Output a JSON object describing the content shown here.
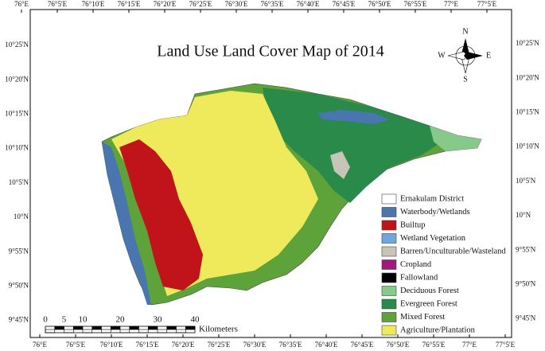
{
  "title": "Land Use Land Cover Map of 2014",
  "compass": {
    "north": "N",
    "south": "S",
    "east": "E",
    "west": "W"
  },
  "graticule": {
    "longitudes": [
      "76°E",
      "76°5'E",
      "76°10'E",
      "76°15'E",
      "76°20'E",
      "76°25'E",
      "76°30'E",
      "76°35'E",
      "76°40'E",
      "76°45'E",
      "76°50'E",
      "76°55'E",
      "77°E",
      "77°5'E"
    ],
    "latitudes": [
      "10°25'N",
      "10°20'N",
      "10°15'N",
      "10°10'N",
      "10°5'N",
      "10°N",
      "9°55'N",
      "9°50'N",
      "9°45'N"
    ]
  },
  "legend": [
    {
      "label": "Ernakulam District",
      "color": "#ffffff"
    },
    {
      "label": "Waterbody/Wetlands",
      "color": "#4a76b0"
    },
    {
      "label": "Builtup",
      "color": "#c0141a"
    },
    {
      "label": "Wetland Vegetation",
      "color": "#6fa6dc"
    },
    {
      "label": "Barren/Unculturable/Wasteland",
      "color": "#c8c4b8"
    },
    {
      "label": "Cropland",
      "color": "#a6177d"
    },
    {
      "label": "Fallowland",
      "color": "#000000"
    },
    {
      "label": "Deciduous Forest",
      "color": "#86c98a"
    },
    {
      "label": "Evergreen Forest",
      "color": "#2a8a4a"
    },
    {
      "label": "Mixed Forest",
      "color": "#5ea33a"
    },
    {
      "label": "Agriculture/Plantation",
      "color": "#eeea5c"
    }
  ],
  "scale_bar": {
    "ticks": [
      0,
      5,
      10,
      20,
      30,
      40
    ],
    "unit": "Kilometers"
  }
}
